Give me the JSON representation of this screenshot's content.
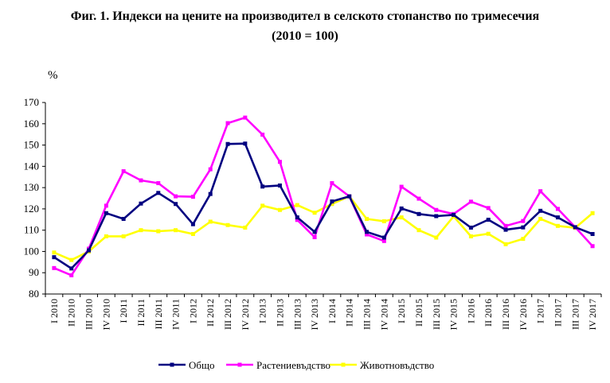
{
  "chart_data": {
    "type": "line",
    "title": "Фиг. 1. Индекси на цените на производител в селското стопанство по тримесечия",
    "subtitle": "(2010 = 100)",
    "ylabel": "%",
    "xlabel": "",
    "ylim": [
      80,
      170
    ],
    "yticks": [
      80,
      90,
      100,
      110,
      120,
      130,
      140,
      150,
      160,
      170
    ],
    "grid": false,
    "legend_position": "bottom",
    "categories": [
      "I 2010",
      "II 2010",
      "III 2010",
      "IV 2010",
      "I 2011",
      "II 2011",
      "III 2011",
      "IV 2011",
      "I 2012",
      "II 2012",
      "III 2012",
      "IV 2012",
      "I 2013",
      "II 2013",
      "III 2013",
      "IV 2013",
      "I 2014",
      "II 2014",
      "III 2014",
      "IV 2014",
      "I 2015",
      "II 2015",
      "III 2015",
      "IV 2015",
      "I 2016",
      "II 2016",
      "III 2016",
      "IV 2016",
      "I 2017",
      "II 2017",
      "III 2017",
      "IV 2017"
    ],
    "series": [
      {
        "name": "Общо",
        "color": "#000080",
        "marker": "square",
        "values": [
          97.3,
          92.0,
          100.5,
          118.0,
          115.3,
          122.5,
          127.5,
          122.3,
          112.8,
          127.0,
          150.5,
          150.7,
          130.5,
          131.0,
          116.0,
          109.2,
          123.5,
          125.9,
          109.2,
          106.5,
          120.2,
          117.6,
          116.6,
          117.2,
          111.2,
          114.9,
          110.2,
          111.3,
          119.1,
          116.0,
          111.4,
          108.2
        ]
      },
      {
        "name": "Растениевъдство",
        "color": "#ff00ff",
        "marker": "square",
        "values": [
          92.2,
          88.8,
          101.3,
          121.5,
          137.7,
          133.4,
          132.1,
          125.9,
          125.7,
          138.6,
          160.3,
          162.9,
          154.9,
          142.1,
          114.8,
          106.7,
          132.1,
          125.9,
          108.0,
          104.9,
          130.4,
          124.8,
          119.5,
          117.6,
          123.4,
          120.4,
          112.0,
          114.3,
          128.3,
          120.0,
          111.4,
          102.5
        ]
      },
      {
        "name": "Животновъдство",
        "color": "#ffff00",
        "marker": "square",
        "values": [
          99.5,
          96.0,
          100.0,
          107.1,
          107.1,
          110.0,
          109.5,
          110.0,
          108.2,
          114.0,
          112.4,
          111.2,
          121.5,
          119.5,
          121.8,
          118.2,
          122.3,
          125.9,
          115.3,
          114.2,
          116.0,
          110.0,
          106.5,
          116.5,
          107.1,
          108.3,
          103.4,
          105.9,
          115.3,
          112.0,
          111.1,
          118.0
        ]
      }
    ]
  }
}
